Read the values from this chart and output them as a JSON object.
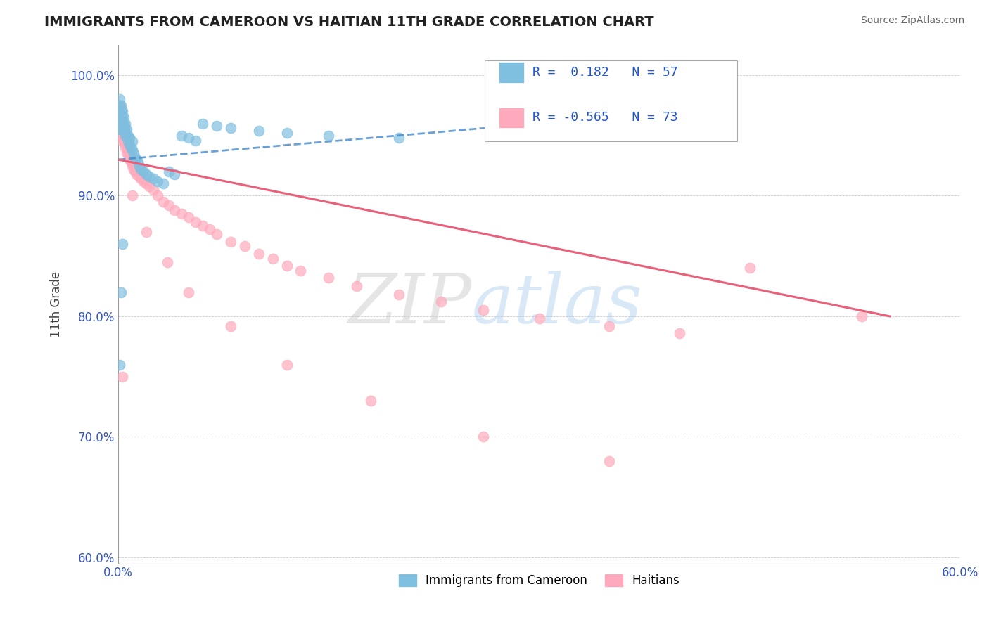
{
  "title": "IMMIGRANTS FROM CAMEROON VS HAITIAN 11TH GRADE CORRELATION CHART",
  "source_text": "Source: ZipAtlas.com",
  "ylabel": "11th Grade",
  "xlim": [
    0.0,
    0.6
  ],
  "ylim": [
    0.595,
    1.025
  ],
  "xticks": [
    0.0,
    0.1,
    0.2,
    0.3,
    0.4,
    0.5,
    0.6
  ],
  "xticklabels": [
    "0.0%",
    "",
    "",
    "",
    "",
    "",
    "60.0%"
  ],
  "yticks": [
    0.6,
    0.7,
    0.8,
    0.9,
    1.0
  ],
  "yticklabels": [
    "60.0%",
    "70.0%",
    "80.0%",
    "90.0%",
    "100.0%"
  ],
  "r_cameroon": 0.182,
  "n_cameroon": 57,
  "r_haitian": -0.565,
  "n_haitian": 73,
  "cameroon_color": "#7fbfdf",
  "haitian_color": "#ffaabc",
  "background_color": "#ffffff",
  "watermark_zip": "ZIP",
  "watermark_atlas": "atlas",
  "legend_label_cameroon": "Immigrants from Cameroon",
  "legend_label_haitian": "Haitians",
  "cameroon_x": [
    0.001,
    0.001,
    0.001,
    0.001,
    0.001,
    0.001,
    0.002,
    0.002,
    0.002,
    0.002,
    0.002,
    0.003,
    0.003,
    0.003,
    0.003,
    0.004,
    0.004,
    0.004,
    0.005,
    0.005,
    0.005,
    0.006,
    0.006,
    0.007,
    0.007,
    0.008,
    0.008,
    0.009,
    0.01,
    0.01,
    0.011,
    0.012,
    0.013,
    0.014,
    0.015,
    0.016,
    0.018,
    0.02,
    0.022,
    0.025,
    0.028,
    0.032,
    0.036,
    0.04,
    0.045,
    0.05,
    0.055,
    0.06,
    0.07,
    0.08,
    0.1,
    0.12,
    0.15,
    0.2,
    0.001,
    0.002,
    0.003
  ],
  "cameroon_y": [
    0.98,
    0.975,
    0.97,
    0.965,
    0.96,
    0.955,
    0.975,
    0.97,
    0.965,
    0.96,
    0.955,
    0.97,
    0.965,
    0.96,
    0.955,
    0.965,
    0.96,
    0.955,
    0.96,
    0.955,
    0.95,
    0.955,
    0.95,
    0.95,
    0.945,
    0.948,
    0.942,
    0.94,
    0.945,
    0.938,
    0.935,
    0.932,
    0.93,
    0.928,
    0.925,
    0.922,
    0.92,
    0.918,
    0.916,
    0.914,
    0.912,
    0.91,
    0.92,
    0.918,
    0.95,
    0.948,
    0.946,
    0.96,
    0.958,
    0.956,
    0.954,
    0.952,
    0.95,
    0.948,
    0.76,
    0.82,
    0.86
  ],
  "haitian_x": [
    0.001,
    0.001,
    0.001,
    0.001,
    0.002,
    0.002,
    0.002,
    0.002,
    0.003,
    0.003,
    0.003,
    0.003,
    0.004,
    0.004,
    0.004,
    0.005,
    0.005,
    0.005,
    0.006,
    0.006,
    0.006,
    0.007,
    0.007,
    0.008,
    0.008,
    0.009,
    0.01,
    0.01,
    0.011,
    0.012,
    0.013,
    0.015,
    0.016,
    0.018,
    0.02,
    0.022,
    0.025,
    0.028,
    0.032,
    0.036,
    0.04,
    0.045,
    0.05,
    0.055,
    0.06,
    0.065,
    0.07,
    0.08,
    0.09,
    0.1,
    0.11,
    0.12,
    0.13,
    0.15,
    0.17,
    0.2,
    0.23,
    0.26,
    0.3,
    0.35,
    0.4,
    0.45,
    0.53,
    0.003,
    0.01,
    0.02,
    0.035,
    0.05,
    0.08,
    0.12,
    0.18,
    0.26,
    0.35
  ],
  "haitian_y": [
    0.975,
    0.97,
    0.965,
    0.96,
    0.97,
    0.965,
    0.96,
    0.955,
    0.96,
    0.955,
    0.95,
    0.945,
    0.955,
    0.95,
    0.945,
    0.95,
    0.945,
    0.94,
    0.945,
    0.94,
    0.935,
    0.94,
    0.935,
    0.935,
    0.93,
    0.928,
    0.93,
    0.925,
    0.922,
    0.92,
    0.918,
    0.916,
    0.914,
    0.912,
    0.91,
    0.908,
    0.905,
    0.9,
    0.895,
    0.892,
    0.888,
    0.885,
    0.882,
    0.878,
    0.875,
    0.872,
    0.868,
    0.862,
    0.858,
    0.852,
    0.848,
    0.842,
    0.838,
    0.832,
    0.825,
    0.818,
    0.812,
    0.805,
    0.798,
    0.792,
    0.786,
    0.84,
    0.8,
    0.75,
    0.9,
    0.87,
    0.845,
    0.82,
    0.792,
    0.76,
    0.73,
    0.7,
    0.68
  ]
}
